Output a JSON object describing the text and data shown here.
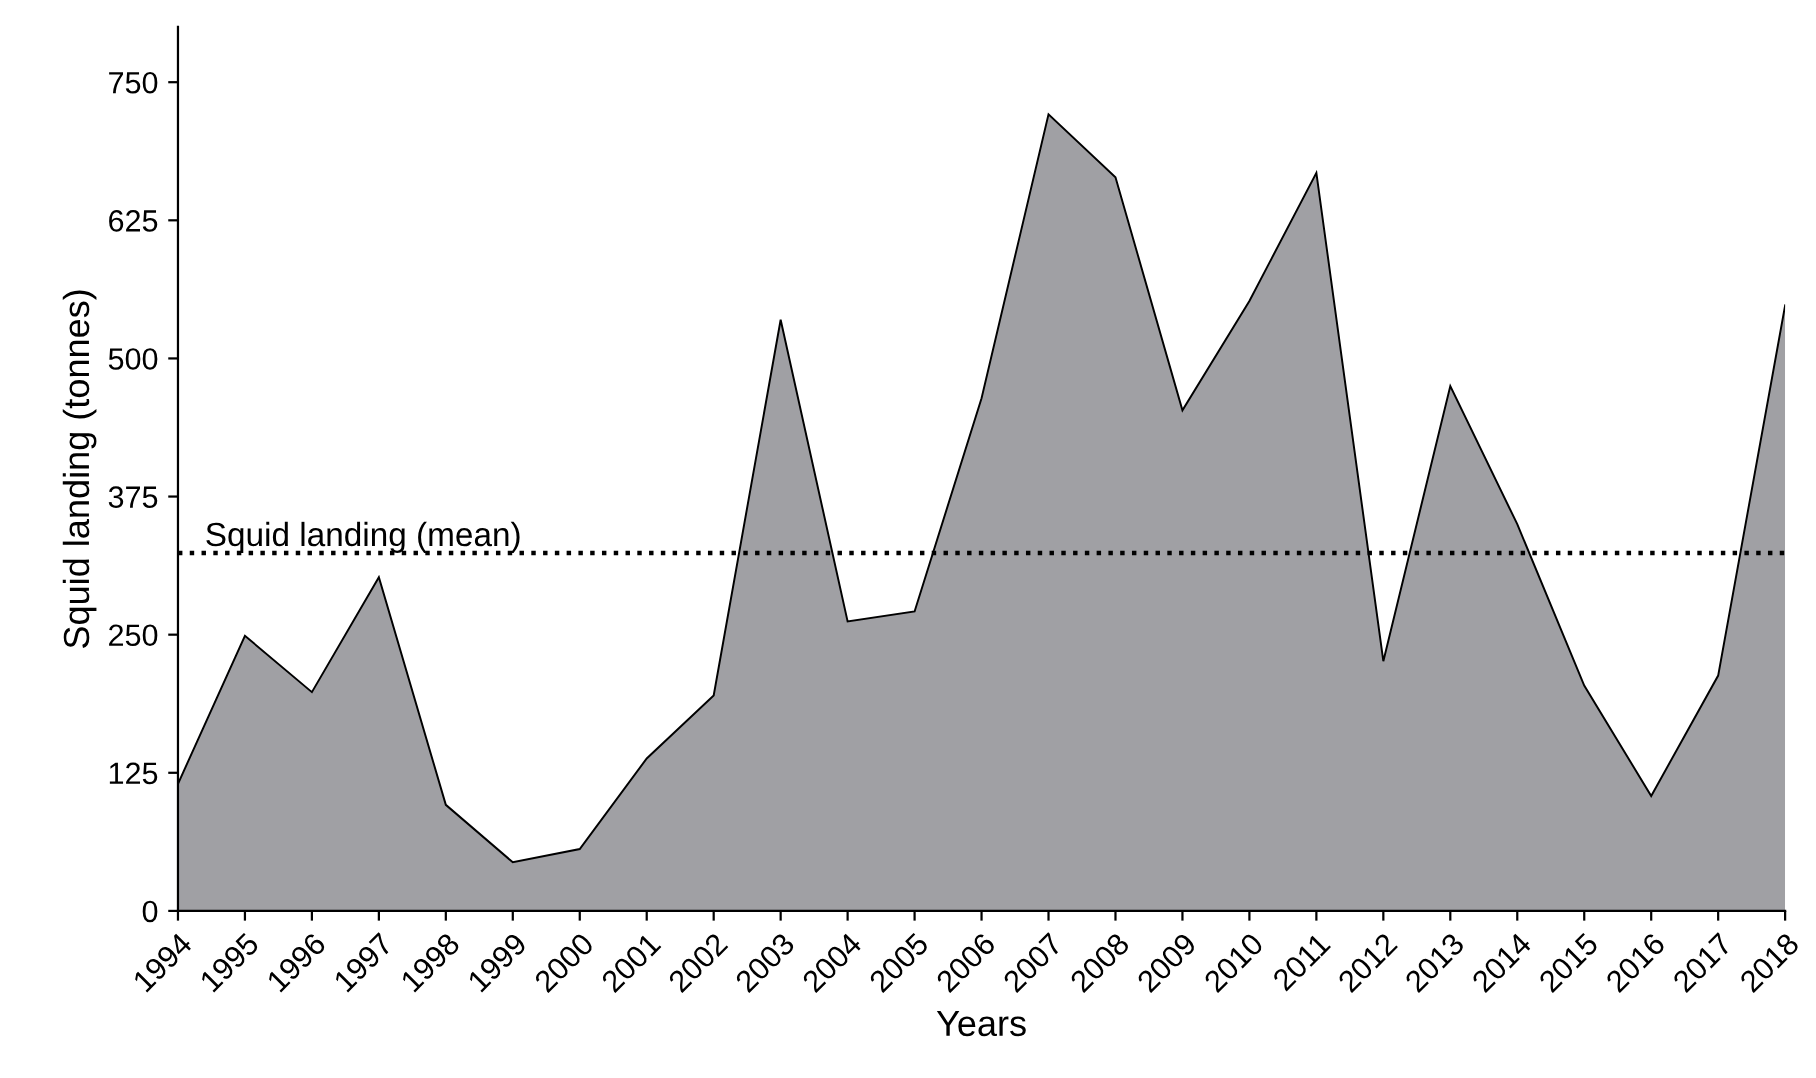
{
  "chart_data": {
    "type": "area",
    "xlabel": "Years",
    "ylabel": "Squid landing (tonnes)",
    "x": [
      1994,
      1995,
      1996,
      1997,
      1998,
      1999,
      2000,
      2001,
      2002,
      2003,
      2004,
      2005,
      2006,
      2007,
      2008,
      2009,
      2010,
      2011,
      2012,
      2013,
      2014,
      2015,
      2016,
      2017,
      2018
    ],
    "series": [
      {
        "color": "#a0a0a4",
        "values": [
          115,
          249,
          198,
          302,
          96,
          44,
          56,
          138,
          195,
          535,
          262,
          271,
          464,
          721,
          664,
          453,
          552,
          668,
          226,
          475,
          350,
          204,
          104,
          213,
          548
        ]
      }
    ],
    "xlim": [
      1994,
      2018
    ],
    "xticks": [
      1994,
      1995,
      1996,
      1997,
      1998,
      1999,
      2000,
      2001,
      2002,
      2003,
      2004,
      2005,
      2006,
      2007,
      2008,
      2009,
      2010,
      2011,
      2012,
      2013,
      2014,
      2015,
      2016,
      2017,
      2018
    ],
    "ylim": [
      0,
      800
    ],
    "yticks": [
      0,
      125,
      250,
      375,
      500,
      625,
      750
    ],
    "ref_lines": [
      {
        "axis": "y",
        "value": 324,
        "label": "Squid landing (mean)",
        "color": "#000000",
        "line_style": "dotted"
      }
    ],
    "grid": false,
    "legend": false
  }
}
